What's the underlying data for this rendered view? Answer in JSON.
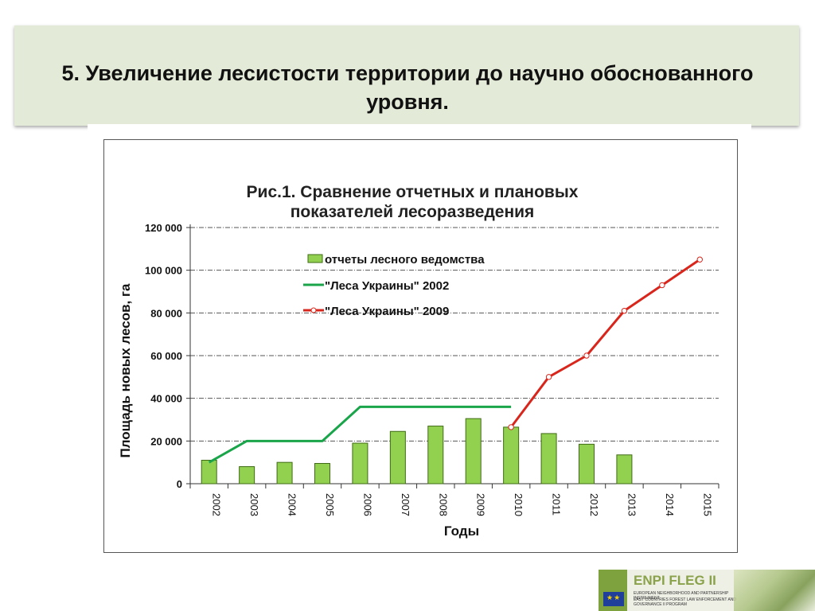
{
  "slide": {
    "title": "5. Увеличение лесистости территории до научно обоснованного уровня."
  },
  "logo": {
    "title": "ENPI FLEG II",
    "line1": "EUROPEAN NEIGHBORHOOD AND PARTNERSHIP INSTRUMENT",
    "line2": "EAST COUNTRIES FOREST LAW ENFORCEMENT AND GOVERNANCE II PROGRAM"
  },
  "colors": {
    "bar": "#92d050",
    "bar_stroke": "#3f6b14",
    "series_2002": "#1aa54b",
    "series_2009": "#d9261c",
    "title_box": "#e4ead8"
  },
  "chart_data": {
    "type": "bar",
    "title": "Рис.1. Сравнение отчетных и плановых показателей лесоразведения",
    "title_lines": [
      "Рис.1. Сравнение отчетных и плановых",
      "показателей лесоразведения"
    ],
    "xlabel": "Годы",
    "ylabel": "Площадь новых лесов, га",
    "ylim": [
      0,
      120000
    ],
    "yticks": [
      "0",
      "20 000",
      "40 000",
      "60 000",
      "80 000",
      "100 000",
      "120 000"
    ],
    "categories": [
      "2002",
      "2003",
      "2004",
      "2005",
      "2006",
      "2007",
      "2008",
      "2009",
      "2010",
      "2011",
      "2012",
      "2013",
      "2014",
      "2015"
    ],
    "grid": true,
    "legend_position": "top-left inside plot",
    "series": [
      {
        "name": "отчеты лесного ведомства",
        "type": "bar",
        "values": [
          11000,
          8000,
          10000,
          9500,
          19000,
          24500,
          27000,
          30500,
          26500,
          23500,
          18500,
          13500,
          null,
          null
        ]
      },
      {
        "name": "\"Леса Украины\" 2002",
        "type": "line",
        "values": [
          10000,
          20000,
          20000,
          20000,
          36000,
          36000,
          36000,
          36000,
          36000,
          null,
          null,
          null,
          null,
          null
        ]
      },
      {
        "name": "\"Леса Украины\" 2009",
        "type": "line",
        "markers": true,
        "values": [
          null,
          null,
          null,
          null,
          null,
          null,
          null,
          null,
          26500,
          50000,
          60000,
          81000,
          93000,
          105000
        ]
      }
    ]
  }
}
